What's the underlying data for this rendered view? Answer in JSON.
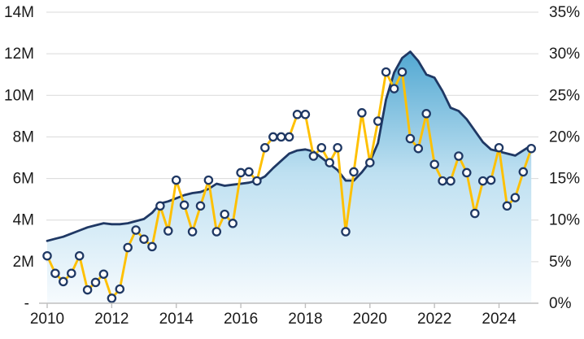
{
  "chart_data": {
    "type": "combo",
    "title": "",
    "x_quarters": [
      "2010Q1",
      "2010Q2",
      "2010Q3",
      "2010Q4",
      "2011Q1",
      "2011Q2",
      "2011Q3",
      "2011Q4",
      "2012Q1",
      "2012Q2",
      "2012Q3",
      "2012Q4",
      "2013Q1",
      "2013Q2",
      "2013Q3",
      "2013Q4",
      "2014Q1",
      "2014Q2",
      "2014Q3",
      "2014Q4",
      "2015Q1",
      "2015Q2",
      "2015Q3",
      "2015Q4",
      "2016Q1",
      "2016Q2",
      "2016Q3",
      "2016Q4",
      "2017Q1",
      "2017Q2",
      "2017Q3",
      "2017Q4",
      "2018Q1",
      "2018Q2",
      "2018Q3",
      "2018Q4",
      "2019Q1",
      "2019Q2",
      "2019Q3",
      "2019Q4",
      "2020Q1",
      "2020Q2",
      "2020Q3",
      "2020Q4",
      "2021Q1",
      "2021Q2",
      "2021Q3",
      "2021Q4",
      "2022Q1",
      "2022Q2",
      "2022Q3",
      "2022Q4",
      "2023Q1",
      "2023Q2",
      "2023Q3",
      "2023Q4",
      "2024Q1",
      "2024Q2",
      "2024Q3",
      "2024Q4",
      "2025Q1"
    ],
    "series": [
      {
        "name": "volume-area",
        "type": "area",
        "axis": "left",
        "unit": "millions",
        "values": [
          3.0,
          3.1,
          3.2,
          3.35,
          3.5,
          3.65,
          3.75,
          3.85,
          3.8,
          3.8,
          3.85,
          3.95,
          4.05,
          4.35,
          4.8,
          4.9,
          5.05,
          5.2,
          5.3,
          5.35,
          5.5,
          5.75,
          5.65,
          5.7,
          5.75,
          5.8,
          5.9,
          6.1,
          6.5,
          6.85,
          7.2,
          7.35,
          7.4,
          7.3,
          7.0,
          6.7,
          6.4,
          5.9,
          5.9,
          6.3,
          6.8,
          7.7,
          9.8,
          11.1,
          11.8,
          12.1,
          11.65,
          11.0,
          10.85,
          10.2,
          9.4,
          9.25,
          8.85,
          8.3,
          7.75,
          7.4,
          7.3,
          7.2,
          7.1,
          7.35,
          7.6
        ]
      },
      {
        "name": "percent-line",
        "type": "line",
        "axis": "right",
        "unit": "percent",
        "values": [
          5.7,
          3.6,
          2.6,
          3.6,
          5.7,
          1.6,
          2.5,
          3.5,
          0.6,
          1.7,
          6.7,
          8.8,
          7.7,
          6.8,
          11.7,
          8.7,
          14.8,
          11.8,
          8.6,
          11.7,
          14.8,
          8.6,
          10.7,
          9.6,
          15.7,
          15.8,
          14.7,
          18.7,
          20.0,
          20.0,
          20.0,
          22.7,
          22.7,
          17.7,
          18.7,
          16.9,
          18.7,
          8.6,
          15.8,
          22.9,
          16.9,
          21.9,
          27.8,
          25.8,
          27.8,
          19.8,
          18.6,
          22.8,
          16.7,
          14.7,
          14.7,
          17.7,
          15.7,
          10.8,
          14.7,
          14.8,
          18.7,
          11.7,
          12.7,
          15.8,
          18.6
        ]
      }
    ],
    "left_axis": {
      "ticks": [
        "14M",
        "12M",
        "10M",
        "8M",
        "6M",
        "4M",
        "2M",
        "-"
      ],
      "max": 14,
      "min": 0
    },
    "right_axis": {
      "ticks": [
        "35%",
        "30%",
        "25%",
        "20%",
        "15%",
        "10%",
        "5%",
        "0%"
      ],
      "max": 35,
      "min": 0
    },
    "x_axis": {
      "tick_labels": [
        "2010",
        "2012",
        "2014",
        "2016",
        "2018",
        "2020",
        "2022",
        "2024"
      ],
      "tick_quarter_index": [
        0,
        8,
        16,
        24,
        32,
        40,
        48,
        56
      ]
    },
    "grid": "horizontal-on",
    "legend": "none",
    "style": {
      "area_fill_top": "#2f96c8",
      "area_fill_mid": "#bee0f1",
      "area_fill_bottom": "#f7fbfe",
      "area_outline": "#1f3864",
      "line_color": "#ffc000",
      "marker_fill": "#ffffff",
      "marker_stroke": "#1f3864",
      "gridline_color": "#d9d9d9",
      "axis_line_color": "#bfbfbf",
      "label_color": "#1a1a1a"
    }
  }
}
